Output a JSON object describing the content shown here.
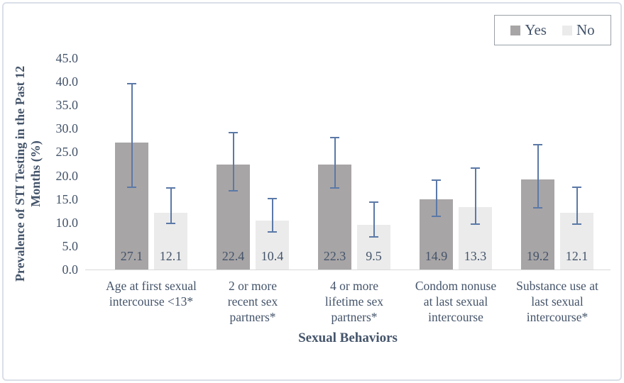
{
  "chart_data": {
    "type": "bar",
    "title": "",
    "xlabel": "Sexual Behaviors",
    "ylabel": "Prevalence of STI Testing in the Past 12 Months (%)",
    "ylabel_lines": [
      "Prevalence of STI Testing in the Past 12",
      "Months (%)"
    ],
    "categories": [
      "Age at first sexual intercourse <13*",
      "2 or more recent sex partners*",
      "4 or more lifetime sex partners*",
      "Condom nonuse at last sexual intercourse",
      "Substance use at last sexual intercourse*"
    ],
    "categories_wrapped": [
      [
        "Age at first sexual",
        "intercourse <13*"
      ],
      [
        "2 or more",
        "recent sex",
        "partners*"
      ],
      [
        "4 or more",
        "lifetime sex",
        "partners*"
      ],
      [
        "Condom nonuse",
        "at last sexual",
        "intercourse"
      ],
      [
        "Substance use at",
        "last sexual",
        "intercourse*"
      ]
    ],
    "series": [
      {
        "name": "Yes",
        "values": [
          27.1,
          22.4,
          22.3,
          14.9,
          19.2
        ],
        "ci_low": [
          17.5,
          16.7,
          17.3,
          11.4,
          13.2
        ],
        "ci_high": [
          39.5,
          29.1,
          28.1,
          19.0,
          26.6
        ],
        "color": "#a8a5a6"
      },
      {
        "name": "No",
        "values": [
          12.1,
          10.4,
          9.5,
          13.3,
          12.1
        ],
        "ci_low": [
          9.8,
          8.0,
          7.0,
          9.6,
          9.7
        ],
        "ci_high": [
          17.4,
          15.1,
          14.3,
          21.6,
          17.5
        ],
        "color": "#ebebeb"
      }
    ],
    "ylim": [
      0,
      45
    ],
    "y_tick_step": 5,
    "y_tick_format": "one_decimal",
    "grid": false,
    "legend_position": "top-right",
    "error_bar_color": "#5b79a7",
    "text_color": "#44546a",
    "axis_line_color": "#d9d9d9"
  }
}
